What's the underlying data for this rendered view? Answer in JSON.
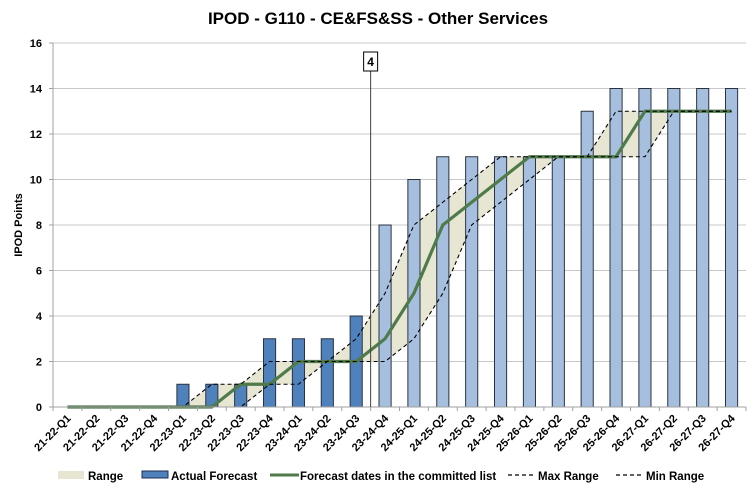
{
  "chart_data": {
    "type": "bar",
    "title": "IPOD - G110 - CE&FS&SS - Other Services",
    "xlabel": "",
    "ylabel": "IPOD Points",
    "ylim": [
      0,
      16
    ],
    "yticks": [
      0,
      2,
      4,
      6,
      8,
      10,
      12,
      14,
      16
    ],
    "grid": true,
    "legend_position": "bottom",
    "categories": [
      "21-22-Q1",
      "21-22-Q2",
      "21-22-Q3",
      "21-22-Q4",
      "22-23-Q1",
      "22-23-Q2",
      "22-23-Q3",
      "22-23-Q4",
      "23-24-Q1",
      "23-24-Q2",
      "23-24-Q3",
      "23-24-Q4",
      "24-25-Q1",
      "24-25-Q2",
      "24-25-Q3",
      "24-25-Q4",
      "25-26-Q1",
      "25-26-Q2",
      "25-26-Q3",
      "25-26-Q4",
      "26-27-Q1",
      "26-27-Q2",
      "26-27-Q3",
      "26-27-Q4"
    ],
    "current_marker": {
      "label": "4",
      "category": "23-24-Q3"
    },
    "series": [
      {
        "name": "Range",
        "type": "area",
        "color": "#e6e6d2"
      },
      {
        "name": "Actual Forecast",
        "type": "bar",
        "color": "#4f81bd",
        "future_color": "#a6bfdf",
        "actual_through": "23-24-Q3",
        "values": [
          0,
          0,
          0,
          0,
          1,
          1,
          1,
          3,
          3,
          3,
          4,
          8,
          10,
          11,
          11,
          11,
          11,
          11,
          13,
          14,
          14,
          14,
          14,
          14
        ]
      },
      {
        "name": "Forecast dates in the committed list",
        "type": "line",
        "color": "#4f7a4a",
        "values": [
          0,
          0,
          0,
          0,
          0,
          0,
          1,
          1,
          2,
          2,
          2,
          3,
          5,
          8,
          9,
          10,
          11,
          11,
          11,
          11,
          13,
          13,
          13,
          13
        ]
      },
      {
        "name": "Max Range",
        "type": "line",
        "style": "dashed",
        "color": "#000000",
        "values": [
          0,
          0,
          0,
          0,
          0,
          1,
          1,
          2,
          2,
          2,
          3,
          5,
          8,
          9,
          10,
          11,
          11,
          11,
          11,
          13,
          13,
          13,
          13,
          13
        ]
      },
      {
        "name": "Min Range",
        "type": "line",
        "style": "dashed",
        "color": "#000000",
        "values": [
          0,
          0,
          0,
          0,
          0,
          0,
          0,
          1,
          1,
          2,
          2,
          2,
          3,
          5,
          8,
          9,
          10,
          11,
          11,
          11,
          11,
          13,
          13,
          13
        ]
      }
    ]
  }
}
